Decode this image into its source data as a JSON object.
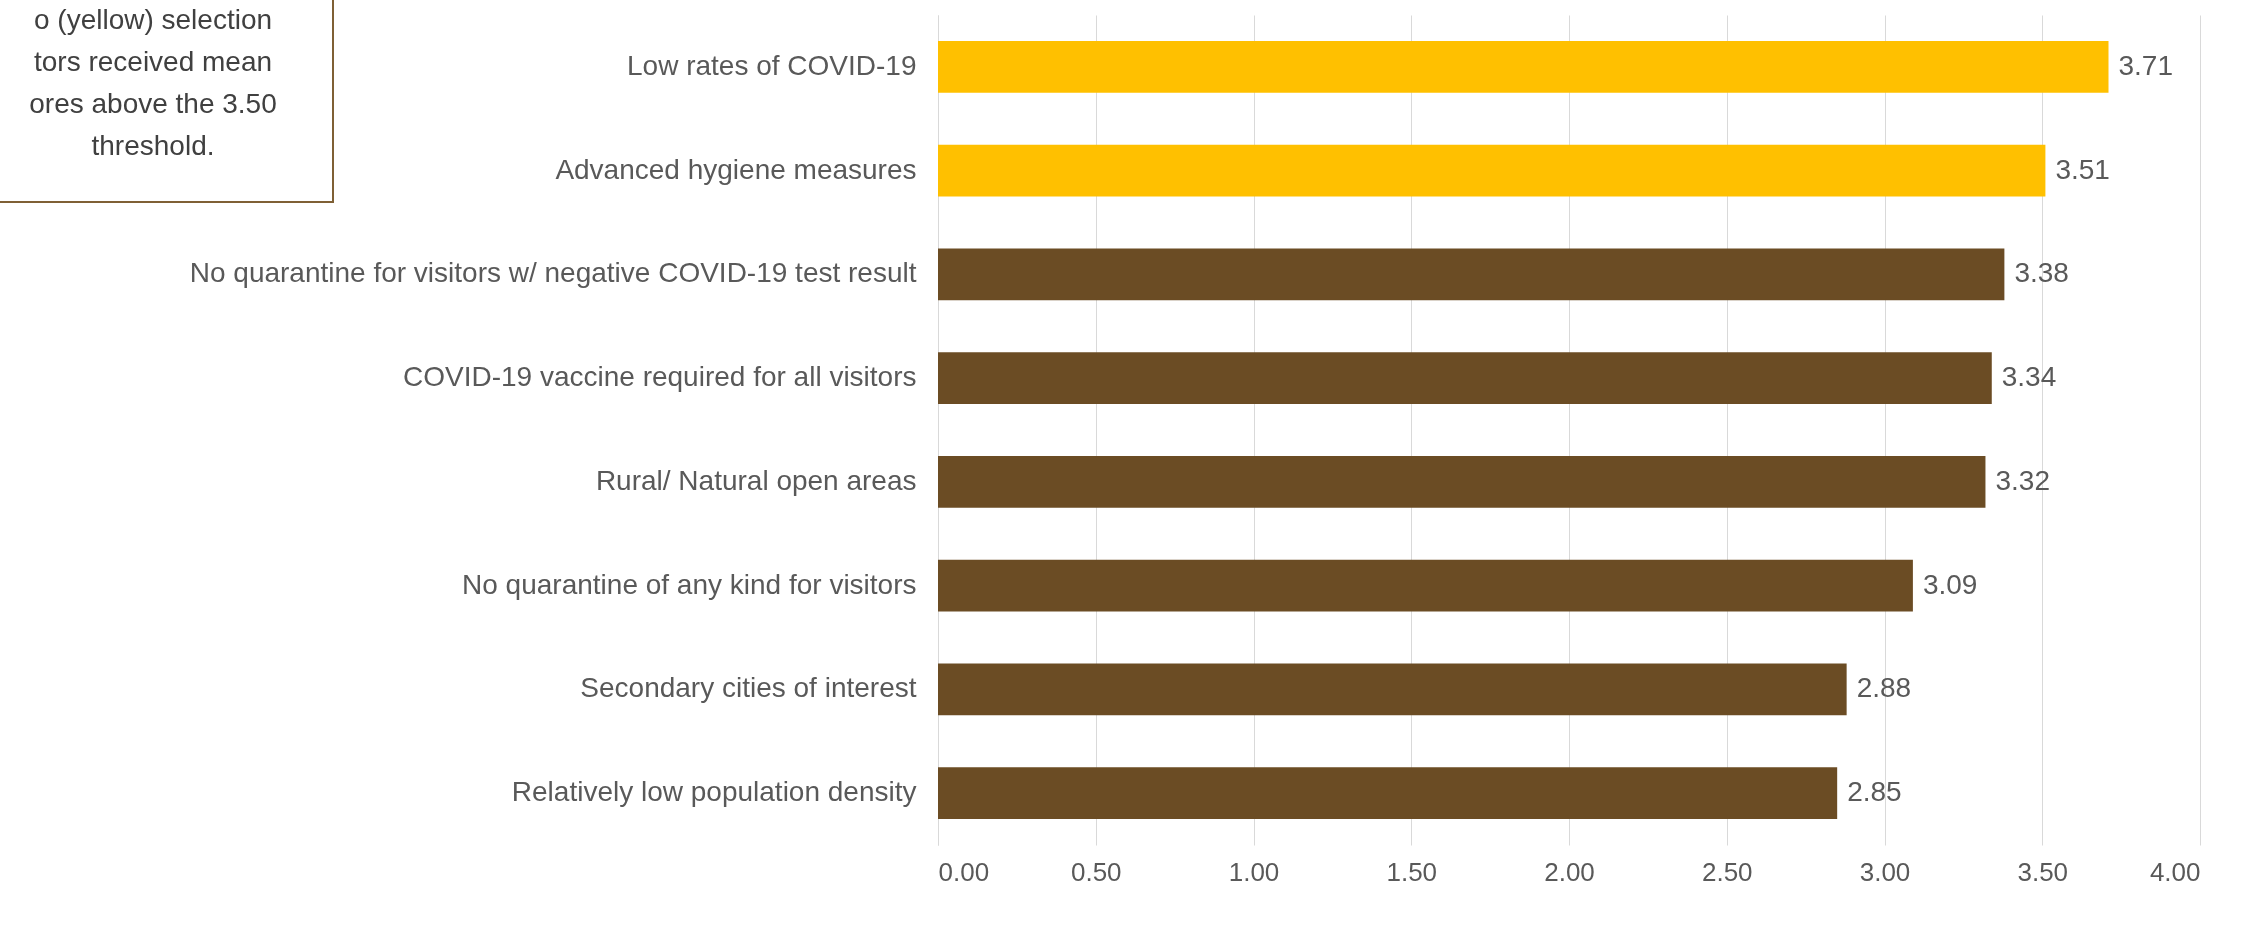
{
  "chart_data": {
    "type": "bar",
    "orientation": "horizontal",
    "categories": [
      "Low rates of COVID-19",
      "Advanced hygiene measures",
      "No quarantine for visitors w/ negative COVID-19 test result",
      "COVID-19 vaccine required for all visitors",
      "Rural/ Natural open areas",
      "No quarantine of any kind for visitors",
      "Secondary cities of interest",
      "Relatively low population density"
    ],
    "values": [
      3.71,
      3.51,
      3.38,
      3.34,
      3.32,
      3.09,
      2.88,
      2.85
    ],
    "colors": [
      "#ffc000",
      "#ffc000",
      "#6b4c24",
      "#6b4c24",
      "#6b4c24",
      "#6b4c24",
      "#6b4c24",
      "#6b4c24"
    ],
    "xlim": [
      0,
      4
    ],
    "xticks": [
      {
        "value": 0,
        "label": "0.00"
      },
      {
        "value": 0.5,
        "label": "0.50"
      },
      {
        "value": 1,
        "label": "1.00"
      },
      {
        "value": 1.5,
        "label": "1.50"
      },
      {
        "value": 2,
        "label": "2.00"
      },
      {
        "value": 2.5,
        "label": "2.50"
      },
      {
        "value": 3,
        "label": "3.00"
      },
      {
        "value": 3.5,
        "label": "3.50"
      },
      {
        "value": 4,
        "label": "4.00"
      }
    ],
    "grid": "x",
    "data_labels": true,
    "annotations": [
      "o (yellow) selection\ntors received mean\nores above the 3.50\nthreshold."
    ]
  }
}
